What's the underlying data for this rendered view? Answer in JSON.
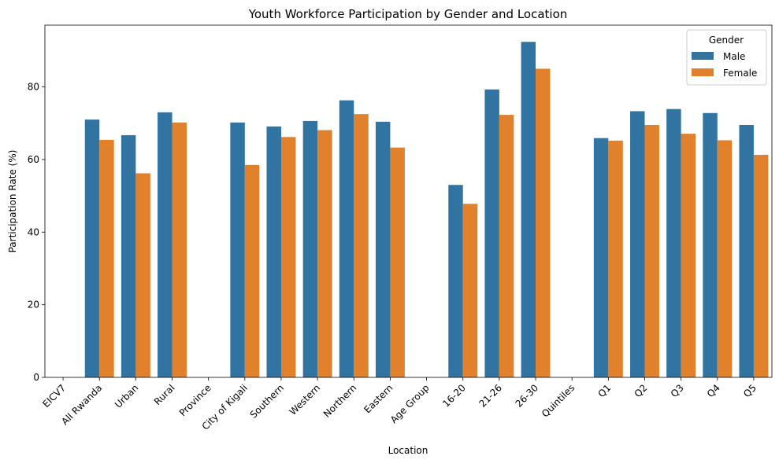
{
  "chart_data": {
    "type": "bar",
    "title": "Youth Workforce Participation by Gender and Location",
    "xlabel": "Location",
    "ylabel": "Participation Rate (%)",
    "ylim": [
      0,
      97
    ],
    "yticks": [
      0,
      20,
      40,
      60,
      80
    ],
    "grid": false,
    "legend": {
      "title": "Gender",
      "placement": "top-right"
    },
    "categories": [
      "EICV7",
      "All Rwanda",
      "Urban",
      "Rural",
      "Province",
      "City of Kigali",
      "Southern",
      "Western",
      "Northern",
      "Eastern",
      "Age Group",
      "16-20",
      "21-26",
      "26-30",
      "Quintiles",
      "Q1",
      "Q2",
      "Q3",
      "Q4",
      "Q5"
    ],
    "series": [
      {
        "name": "Male",
        "color": "#3274a1",
        "values": [
          null,
          71.0,
          66.7,
          73.0,
          null,
          70.2,
          69.1,
          70.6,
          76.3,
          70.4,
          null,
          53.0,
          79.3,
          92.4,
          null,
          65.9,
          73.3,
          73.9,
          72.8,
          69.5
        ]
      },
      {
        "name": "Female",
        "color": "#e1812c",
        "values": [
          null,
          65.4,
          56.2,
          70.2,
          null,
          58.5,
          66.2,
          68.1,
          72.5,
          63.3,
          null,
          47.8,
          72.3,
          85.0,
          null,
          65.2,
          69.5,
          67.1,
          65.3,
          61.3
        ]
      }
    ]
  }
}
